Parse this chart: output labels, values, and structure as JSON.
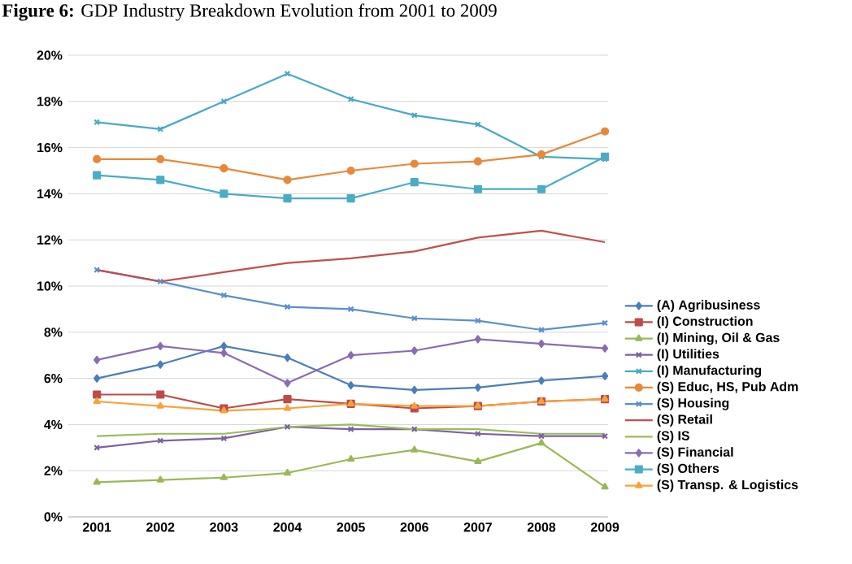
{
  "chart_data": {
    "type": "line",
    "title": "**Figure 6:** GDP Industry Breakdown Evolution from 2001 to 2009",
    "categories": [
      "2001",
      "2002",
      "2003",
      "2004",
      "2005",
      "2006",
      "2007",
      "2008",
      "2009"
    ],
    "ylim": [
      0,
      20
    ],
    "yticks": [
      {
        "value": 0,
        "label": "0%"
      },
      {
        "value": 2,
        "label": "2%"
      },
      {
        "value": 4,
        "label": "4%"
      },
      {
        "value": 6,
        "label": "6%"
      },
      {
        "value": 8,
        "label": "8%"
      },
      {
        "value": 10,
        "label": "10%"
      },
      {
        "value": 12,
        "label": "12%"
      },
      {
        "value": 14,
        "label": "14%"
      },
      {
        "value": 16,
        "label": "16%"
      },
      {
        "value": 18,
        "label": "18%"
      },
      {
        "value": 20,
        "label": "20%"
      }
    ],
    "grid": "y",
    "legend": "right",
    "series": [
      {
        "name": "(A) Agribusiness",
        "color": "#4a7ebb",
        "marker": "diamond",
        "values": [
          6.0,
          6.6,
          7.4,
          6.9,
          5.7,
          5.5,
          5.6,
          5.9,
          6.1
        ]
      },
      {
        "name": "(I) Construction",
        "color": "#be4b48",
        "marker": "square",
        "values": [
          5.3,
          5.3,
          4.7,
          5.1,
          4.9,
          4.7,
          4.8,
          5.0,
          5.1
        ]
      },
      {
        "name": "(I) Mining, Oil & Gas",
        "color": "#98b954",
        "marker": "triangle",
        "values": [
          1.5,
          1.6,
          1.7,
          1.9,
          2.5,
          2.9,
          2.4,
          3.2,
          1.3
        ]
      },
      {
        "name": "(I) Utilities",
        "color": "#7d60a0",
        "marker": "cross",
        "values": [
          3.0,
          3.3,
          3.4,
          3.9,
          3.8,
          3.8,
          3.6,
          3.5,
          3.5
        ]
      },
      {
        "name": "(I) Manufacturing",
        "color": "#46aac5",
        "marker": "cross",
        "values": [
          17.1,
          16.8,
          18.0,
          19.2,
          18.1,
          17.4,
          17.0,
          15.6,
          15.5
        ]
      },
      {
        "name": "(S) Educ, HS, Pub Adm",
        "color": "#e8883a",
        "marker": "circle",
        "values": [
          15.5,
          15.5,
          15.1,
          14.6,
          15.0,
          15.3,
          15.4,
          15.7,
          16.7
        ]
      },
      {
        "name": "(S) Housing",
        "color": "#5b8fd0",
        "marker": "cross",
        "values": [
          10.7,
          10.2,
          9.6,
          9.1,
          9.0,
          8.6,
          8.5,
          8.1,
          8.4
        ]
      },
      {
        "name": "(S) Retail",
        "color": "#c0504d",
        "marker": "none",
        "values": [
          10.7,
          10.2,
          10.6,
          11.0,
          11.2,
          11.5,
          12.1,
          12.4,
          11.9
        ]
      },
      {
        "name": "(S) IS",
        "color": "#9bbb59",
        "marker": "none",
        "values": [
          3.5,
          3.6,
          3.6,
          3.9,
          4.0,
          3.8,
          3.8,
          3.6,
          3.6
        ]
      },
      {
        "name": "(S) Financial",
        "color": "#8a6cb0",
        "marker": "diamond",
        "values": [
          6.8,
          7.4,
          7.1,
          5.8,
          7.0,
          7.2,
          7.7,
          7.5,
          7.3
        ]
      },
      {
        "name": "(S) Others",
        "color": "#4bacc6",
        "marker": "square",
        "values": [
          14.8,
          14.6,
          14.0,
          13.8,
          13.8,
          14.5,
          14.2,
          14.2,
          15.6
        ]
      },
      {
        "name": "(S) Transp. & Logistics",
        "color": "#f9a13a",
        "marker": "triangle",
        "values": [
          5.0,
          4.8,
          4.6,
          4.7,
          4.9,
          4.8,
          4.8,
          5.0,
          5.1
        ]
      }
    ]
  }
}
